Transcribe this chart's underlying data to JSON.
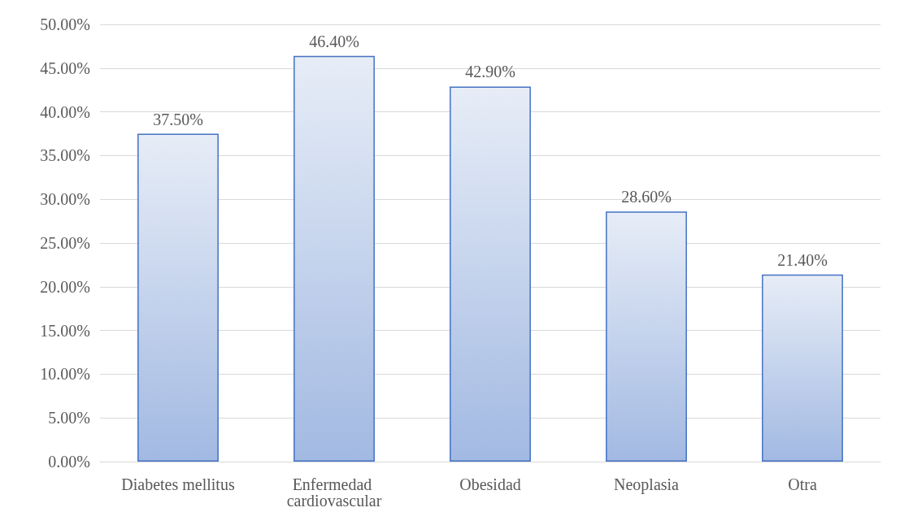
{
  "chart_data": {
    "type": "bar",
    "categories": [
      "Diabetes mellitus",
      "Enfermedad cardiovascular",
      "Obesidad",
      "Neoplasia",
      "Otra"
    ],
    "values": [
      37.5,
      46.4,
      42.9,
      28.6,
      21.4
    ],
    "value_labels": [
      "37.50%",
      "46.40%",
      "42.90%",
      "28.60%",
      "21.40%"
    ],
    "color": "#4472c4",
    "ylim": [
      0,
      50
    ],
    "yticks": [
      {
        "value": 0,
        "label": "0.00%"
      },
      {
        "value": 5,
        "label": "5.00%"
      },
      {
        "value": 10,
        "label": "10.00%"
      },
      {
        "value": 15,
        "label": "15.00%"
      },
      {
        "value": 20,
        "label": "20.00%"
      },
      {
        "value": 25,
        "label": "25.00%"
      },
      {
        "value": 30,
        "label": "30.00%"
      },
      {
        "value": 35,
        "label": "35.00%"
      },
      {
        "value": 40,
        "label": "40.00%"
      },
      {
        "value": 45,
        "label": "45.00%"
      },
      {
        "value": 50,
        "label": "50.00%"
      }
    ],
    "grid": "y"
  }
}
